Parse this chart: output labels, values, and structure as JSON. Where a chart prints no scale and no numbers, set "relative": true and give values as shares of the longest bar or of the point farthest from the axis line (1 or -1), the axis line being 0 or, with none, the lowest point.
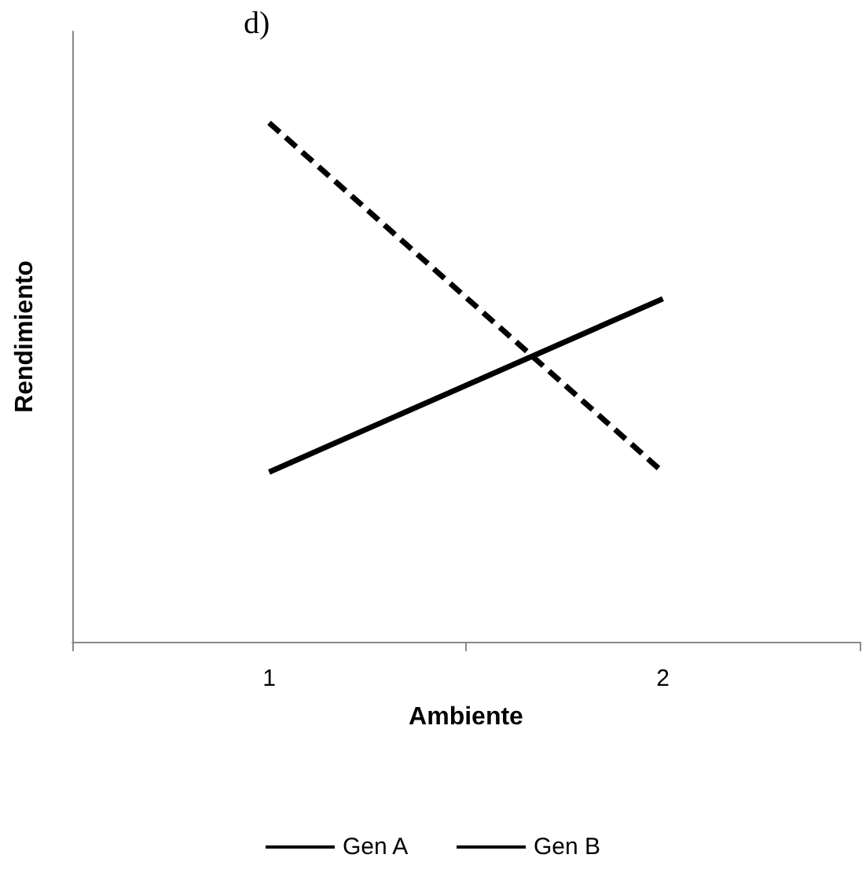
{
  "chart_data": {
    "type": "line",
    "title": "d)",
    "xlabel": "Ambiente",
    "ylabel": "Rendimiento",
    "categories": [
      "1",
      "2"
    ],
    "relative": true,
    "grid": false,
    "legend": "bottom",
    "marker": "none",
    "series": [
      {
        "name": "Gen A",
        "color": "#000000",
        "line_style": "solid",
        "values": [
          0.327,
          0.661
        ]
      },
      {
        "name": "Gen B",
        "color": "#000000",
        "line_style": "dashed",
        "values": [
          1,
          0.327
        ]
      }
    ]
  }
}
